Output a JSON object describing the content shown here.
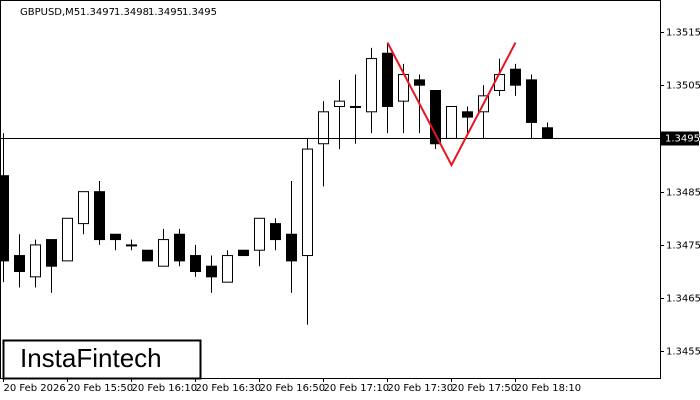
{
  "chart_data": {
    "type": "candlestick",
    "symbol": "GBPUSD,M5",
    "header_values": [
      1.3497,
      1.3498,
      1.3495,
      1.3495
    ],
    "categories": [
      "20 Feb 2026",
      null,
      null,
      null,
      "20 Feb 15:50",
      null,
      null,
      null,
      "20 Feb 16:10",
      null,
      null,
      null,
      "20 Feb 16:30",
      null,
      null,
      null,
      "20 Feb 16:50",
      null,
      null,
      null,
      "20 Feb 17:10",
      null,
      null,
      null,
      "20 Feb 17:30",
      null,
      null,
      null,
      "20 Feb 17:50",
      null,
      null,
      null,
      "20 Feb 18:10",
      null,
      null
    ],
    "open": [
      1.3488,
      1.3473,
      1.3469,
      1.3476,
      1.3472,
      1.3479,
      1.3485,
      1.3477,
      1.3475,
      1.3474,
      1.3471,
      1.3477,
      1.3473,
      1.3471,
      1.3468,
      1.3474,
      1.3474,
      1.3479,
      1.3477,
      1.3473,
      1.3494,
      1.3501,
      1.3501,
      1.35,
      1.3511,
      1.3502,
      1.3506,
      1.3504,
      1.3495,
      1.35,
      1.35,
      1.3504,
      1.3508,
      1.3506,
      1.3497
    ],
    "high": [
      1.3496,
      1.3477,
      1.3476,
      1.3476,
      1.348,
      1.3485,
      1.3487,
      1.3477,
      1.3476,
      1.3474,
      1.3478,
      1.3478,
      1.3475,
      1.3473,
      1.3474,
      1.3474,
      1.348,
      1.348,
      1.3487,
      1.3495,
      1.3502,
      1.3506,
      1.3507,
      1.3512,
      1.3513,
      1.3509,
      1.3507,
      1.3504,
      1.3501,
      1.3501,
      1.3505,
      1.351,
      1.3509,
      1.3507,
      1.3498
    ],
    "low": [
      1.3468,
      1.3467,
      1.3467,
      1.3466,
      1.3472,
      1.3477,
      1.3475,
      1.3474,
      1.3474,
      1.3472,
      1.3471,
      1.3471,
      1.3469,
      1.3466,
      1.3468,
      1.3473,
      1.3471,
      1.3474,
      1.3466,
      1.346,
      1.3486,
      1.3493,
      1.3494,
      1.3496,
      1.3496,
      1.3496,
      1.3496,
      1.3493,
      1.3495,
      1.3496,
      1.3495,
      1.3503,
      1.3503,
      1.3495,
      1.3495
    ],
    "close": [
      1.3472,
      1.347,
      1.3475,
      1.3471,
      1.348,
      1.3485,
      1.3476,
      1.3476,
      1.3475,
      1.3472,
      1.3476,
      1.3472,
      1.347,
      1.3469,
      1.3473,
      1.3473,
      1.348,
      1.3476,
      1.3472,
      1.3493,
      1.35,
      1.3502,
      1.3501,
      1.351,
      1.3501,
      1.3507,
      1.3505,
      1.3494,
      1.3501,
      1.3499,
      1.3503,
      1.3507,
      1.3505,
      1.3498,
      1.3495
    ],
    "up_color": "#ffffff",
    "down_color": "#000000",
    "current_price": 1.3495,
    "pattern": {
      "color": "#e8141e",
      "index": [
        24,
        28,
        32
      ],
      "values": [
        1.3513,
        1.349,
        1.3513
      ]
    },
    "ylim": [
      1.345,
      1.3521
    ],
    "yticks": [
      1.3515,
      1.3505,
      1.3495,
      1.3485,
      1.3475,
      1.3465,
      1.3455
    ],
    "watermark": "InstaFintech"
  }
}
